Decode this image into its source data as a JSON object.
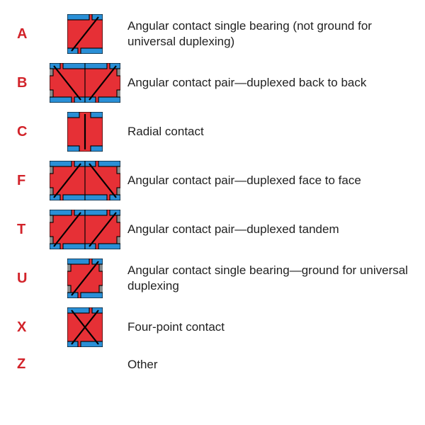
{
  "colors": {
    "letter": "#d2232a",
    "desc": "#222222",
    "red": "#e63036",
    "blue": "#2a8fd6",
    "black": "#000000",
    "grey": "#8b8b8b",
    "white": "#ffffff"
  },
  "font": {
    "letter_size": 20,
    "desc_size": 17,
    "family": "Segoe UI, Arial, sans-serif"
  },
  "rows": [
    {
      "letter": "A",
      "icon": "single",
      "desc": "Angular contact single bearing (not ground for universal duplexing)"
    },
    {
      "letter": "B",
      "icon": "pair_back",
      "desc": "Angular contact pair—duplexed back to back"
    },
    {
      "letter": "C",
      "icon": "radial",
      "desc": "Radial contact"
    },
    {
      "letter": "F",
      "icon": "pair_face",
      "desc": "Angular contact pair—duplexed face to face"
    },
    {
      "letter": "T",
      "icon": "pair_tandem",
      "desc": "Angular contact pair—duplexed tandem"
    },
    {
      "letter": "U",
      "icon": "single_u",
      "desc": "Angular contact single bearing—ground for universal duplexing"
    },
    {
      "letter": "X",
      "icon": "fourpoint",
      "desc": "Four-point contact"
    },
    {
      "letter": "Z",
      "icon": "none",
      "desc": "Other"
    }
  ],
  "icon_style": {
    "single_w": 50,
    "single_h": 56,
    "pair_w": 100,
    "pair_h": 56,
    "radial_w": 50,
    "radial_h": 56,
    "stroke_w": 1.1,
    "diag_w": 2.2
  }
}
